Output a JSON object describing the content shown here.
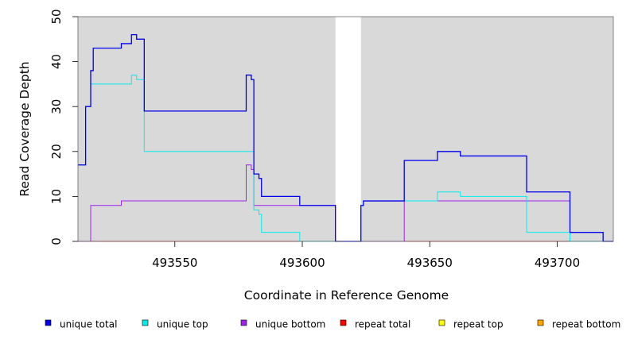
{
  "chart_data": {
    "type": "line",
    "title": "",
    "xlabel": "Coordinate in Reference Genome",
    "ylabel": "Read Coverage Depth",
    "xlim": [
      493512,
      493722
    ],
    "ylim": [
      0,
      50
    ],
    "xticks": [
      493550,
      493600,
      493650,
      493700
    ],
    "yticks": [
      0,
      10,
      20,
      30,
      40,
      50
    ],
    "gap": [
      493613,
      493623
    ],
    "grid": false,
    "background": "#d9d9d9",
    "legend_position": "bottom",
    "series": [
      {
        "name": "unique total",
        "color": "#0000ee",
        "step": [
          [
            493512,
            17
          ],
          [
            493515,
            30
          ],
          [
            493517,
            38
          ],
          [
            493518,
            43
          ],
          [
            493529,
            44
          ],
          [
            493533,
            46
          ],
          [
            493535,
            45
          ],
          [
            493538,
            29
          ],
          [
            493578,
            37
          ],
          [
            493580,
            36
          ],
          [
            493581,
            15
          ],
          [
            493583,
            14
          ],
          [
            493584,
            10
          ],
          [
            493599,
            8
          ],
          [
            493613,
            0
          ],
          [
            493623,
            8
          ],
          [
            493624,
            9
          ],
          [
            493640,
            18
          ],
          [
            493653,
            20
          ],
          [
            493662,
            19
          ],
          [
            493688,
            11
          ],
          [
            493705,
            2
          ],
          [
            493718,
            0
          ],
          [
            493722,
            0
          ]
        ]
      },
      {
        "name": "unique top",
        "color": "#00eeee",
        "step": [
          [
            493512,
            17
          ],
          [
            493515,
            30
          ],
          [
            493517,
            35
          ],
          [
            493533,
            37
          ],
          [
            493535,
            36
          ],
          [
            493538,
            20
          ],
          [
            493581,
            7
          ],
          [
            493583,
            6
          ],
          [
            493584,
            2
          ],
          [
            493599,
            0
          ],
          [
            493613,
            0
          ],
          [
            493623,
            8
          ],
          [
            493624,
            9
          ],
          [
            493640,
            9
          ],
          [
            493653,
            11
          ],
          [
            493662,
            10
          ],
          [
            493688,
            2
          ],
          [
            493705,
            0
          ],
          [
            493722,
            0
          ]
        ]
      },
      {
        "name": "unique bottom",
        "color": "#a020f0",
        "step": [
          [
            493512,
            0
          ],
          [
            493517,
            8
          ],
          [
            493529,
            9
          ],
          [
            493578,
            17
          ],
          [
            493580,
            16
          ],
          [
            493581,
            8
          ],
          [
            493599,
            8
          ],
          [
            493613,
            0
          ],
          [
            493640,
            9
          ],
          [
            493705,
            0
          ],
          [
            493722,
            0
          ]
        ]
      },
      {
        "name": "repeat total",
        "color": "#ff0000",
        "step": [
          [
            493512,
            0
          ],
          [
            493722,
            0
          ]
        ]
      },
      {
        "name": "repeat top",
        "color": "#ffff00",
        "step": [
          [
            493512,
            0
          ],
          [
            493722,
            0
          ]
        ]
      },
      {
        "name": "repeat bottom",
        "color": "#ffa500",
        "step": [
          [
            493512,
            0
          ],
          [
            493722,
            0
          ]
        ]
      }
    ]
  }
}
